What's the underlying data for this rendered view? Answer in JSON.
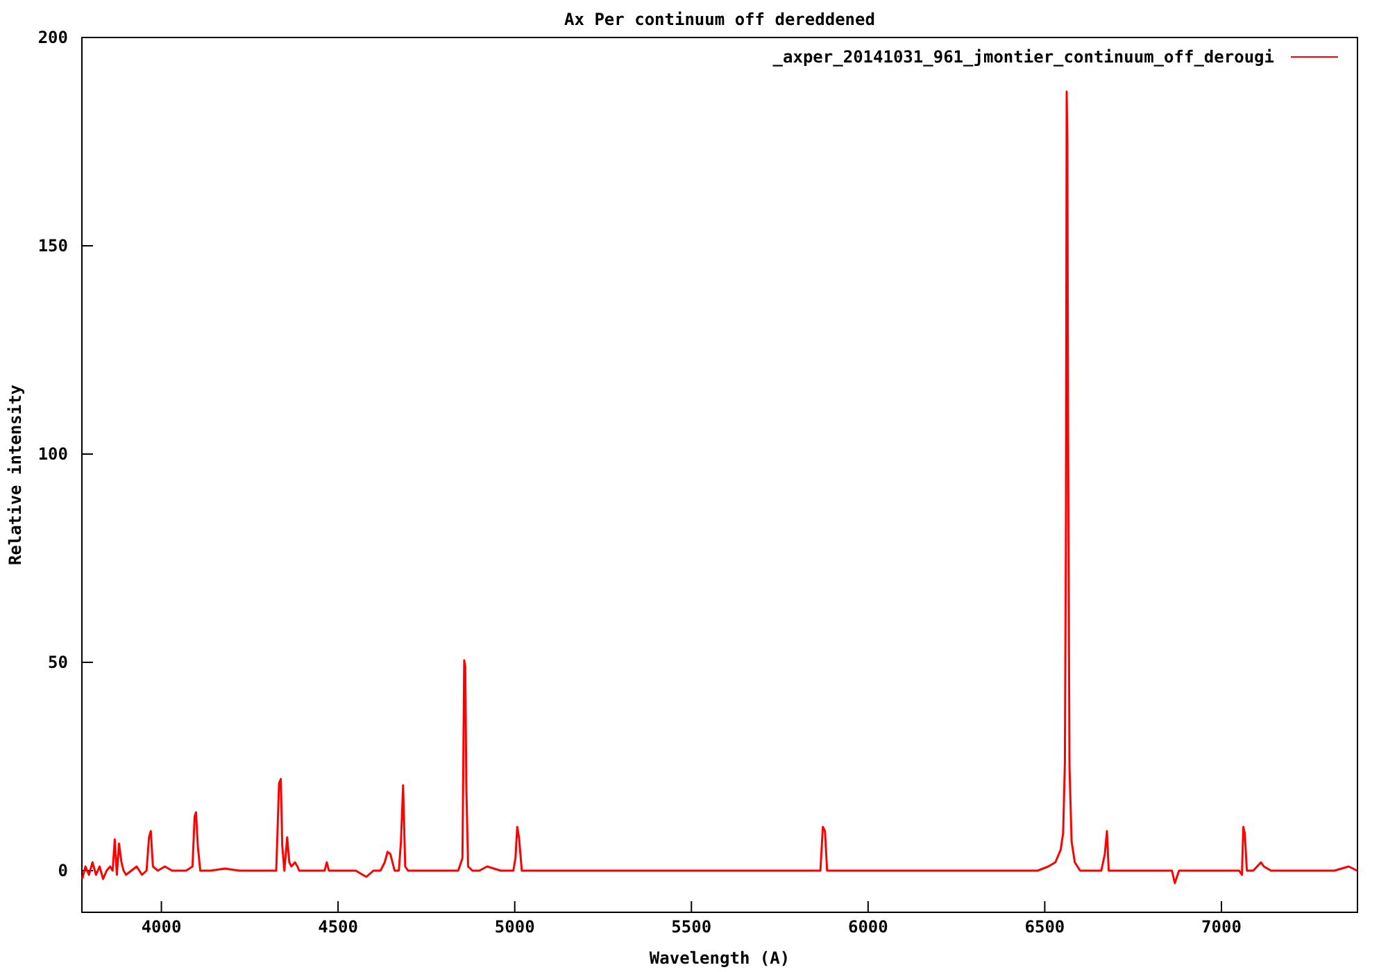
{
  "chart_data": {
    "type": "line",
    "title": "Ax Per continuum off dereddened",
    "xlabel": "Wavelength (A)",
    "ylabel": "Relative intensity",
    "xlim": [
      3775,
      7385
    ],
    "ylim": [
      -10,
      200
    ],
    "xticks": [
      4000,
      4500,
      5000,
      5500,
      6000,
      6500,
      7000
    ],
    "yticks": [
      0,
      50,
      100,
      150,
      200
    ],
    "grid": false,
    "legend": "top right",
    "marker": "none",
    "line_style": "solid",
    "series": [
      {
        "name": "_axper_20141031_961_jmontier_continuum_off_derougi",
        "color": "#ff0000",
        "x": [
          3776,
          3785,
          3795,
          3805,
          3815,
          3825,
          3835,
          3845,
          3855,
          3862,
          3868,
          3874,
          3880,
          3887,
          3893,
          3900,
          3915,
          3930,
          3945,
          3958,
          3965,
          3970,
          3976,
          3990,
          4010,
          4030,
          4050,
          4070,
          4088,
          4094,
          4098,
          4103,
          4110,
          4140,
          4180,
          4220,
          4260,
          4300,
          4325,
          4333,
          4338,
          4342,
          4348,
          4356,
          4362,
          4368,
          4378,
          4385,
          4390,
          4400,
          4430,
          4462,
          4468,
          4474,
          4500,
          4550,
          4580,
          4600,
          4620,
          4632,
          4640,
          4648,
          4660,
          4672,
          4678,
          4684,
          4690,
          4698,
          4720,
          4760,
          4800,
          4840,
          4852,
          4857,
          4860,
          4863,
          4868,
          4880,
          4900,
          4922,
          4960,
          4996,
          5002,
          5007,
          5012,
          5020,
          5200,
          5400,
          5600,
          5800,
          5865,
          5872,
          5878,
          5884,
          5895,
          6100,
          6300,
          6480,
          6510,
          6530,
          6545,
          6552,
          6557,
          6560,
          6562,
          6564,
          6566,
          6570,
          6576,
          6585,
          6600,
          6630,
          6660,
          6670,
          6676,
          6681,
          6690,
          6750,
          6820,
          6860,
          6868,
          6880,
          6950,
          7030,
          7050,
          7058,
          7062,
          7066,
          7072,
          7090,
          7112,
          7120,
          7140,
          7200,
          7260,
          7320,
          7360,
          7384
        ],
        "values": [
          -2,
          1,
          -1,
          2,
          -1,
          1,
          -2,
          0,
          1,
          0,
          7.5,
          -1,
          6.5,
          2,
          0,
          -1,
          0,
          1,
          -1,
          0,
          8,
          9.5,
          1,
          0,
          1,
          0,
          0,
          0,
          1,
          13,
          14,
          6,
          0,
          0,
          0.5,
          0,
          0,
          0,
          0,
          21,
          22,
          6,
          0,
          8,
          2,
          1,
          2,
          1,
          0,
          0,
          0,
          0,
          2,
          0,
          0,
          0,
          -1.5,
          0,
          0,
          2,
          4.5,
          4,
          0,
          0,
          7,
          20.5,
          1,
          0,
          0,
          0,
          0,
          0,
          3,
          50.5,
          49,
          20,
          1,
          0,
          0,
          1,
          0,
          0,
          3,
          10.5,
          8,
          0,
          0,
          0,
          0,
          0,
          0,
          10.5,
          9.5,
          0,
          0,
          0,
          0,
          0,
          1,
          2,
          5,
          9,
          26,
          84,
          187,
          175,
          105,
          25,
          7,
          2,
          0,
          0,
          0,
          4,
          9.5,
          0,
          0,
          0,
          0,
          0,
          -3,
          0,
          0,
          0,
          0,
          -1,
          10.5,
          9,
          0,
          0,
          2,
          1,
          0,
          0,
          0,
          0,
          1,
          0
        ]
      }
    ]
  }
}
